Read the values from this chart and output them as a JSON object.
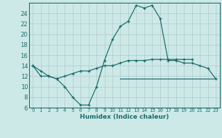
{
  "xlabel": "Humidex (Indice chaleur)",
  "x": [
    0,
    1,
    2,
    3,
    4,
    5,
    6,
    7,
    8,
    9,
    10,
    11,
    12,
    13,
    14,
    15,
    16,
    17,
    18,
    19,
    20,
    21,
    22,
    23
  ],
  "line1": [
    14,
    13,
    12,
    11.5,
    10,
    8,
    6.5,
    6.5,
    10,
    15,
    19,
    21.5,
    22.5,
    25.5,
    25,
    25.5,
    23,
    15,
    15,
    14.5,
    14.5,
    14,
    13.5,
    11.5
  ],
  "line2": [
    14,
    12,
    12,
    11.5,
    12,
    12.5,
    13,
    13,
    13.5,
    14,
    14,
    14.5,
    15,
    15,
    15,
    15.2,
    15.2,
    15.2,
    15.2,
    15.2,
    15.2,
    null,
    null,
    null
  ],
  "line3_x": [
    11,
    23
  ],
  "line3_y": [
    11.5,
    11.5
  ],
  "ylim": [
    6,
    26
  ],
  "yticks": [
    6,
    8,
    10,
    12,
    14,
    16,
    18,
    20,
    22,
    24
  ],
  "xlim": [
    -0.5,
    23.5
  ],
  "bg_color": "#cce9e7",
  "grid_color": "#b0c8c8",
  "line_color": "#1a6b6b"
}
